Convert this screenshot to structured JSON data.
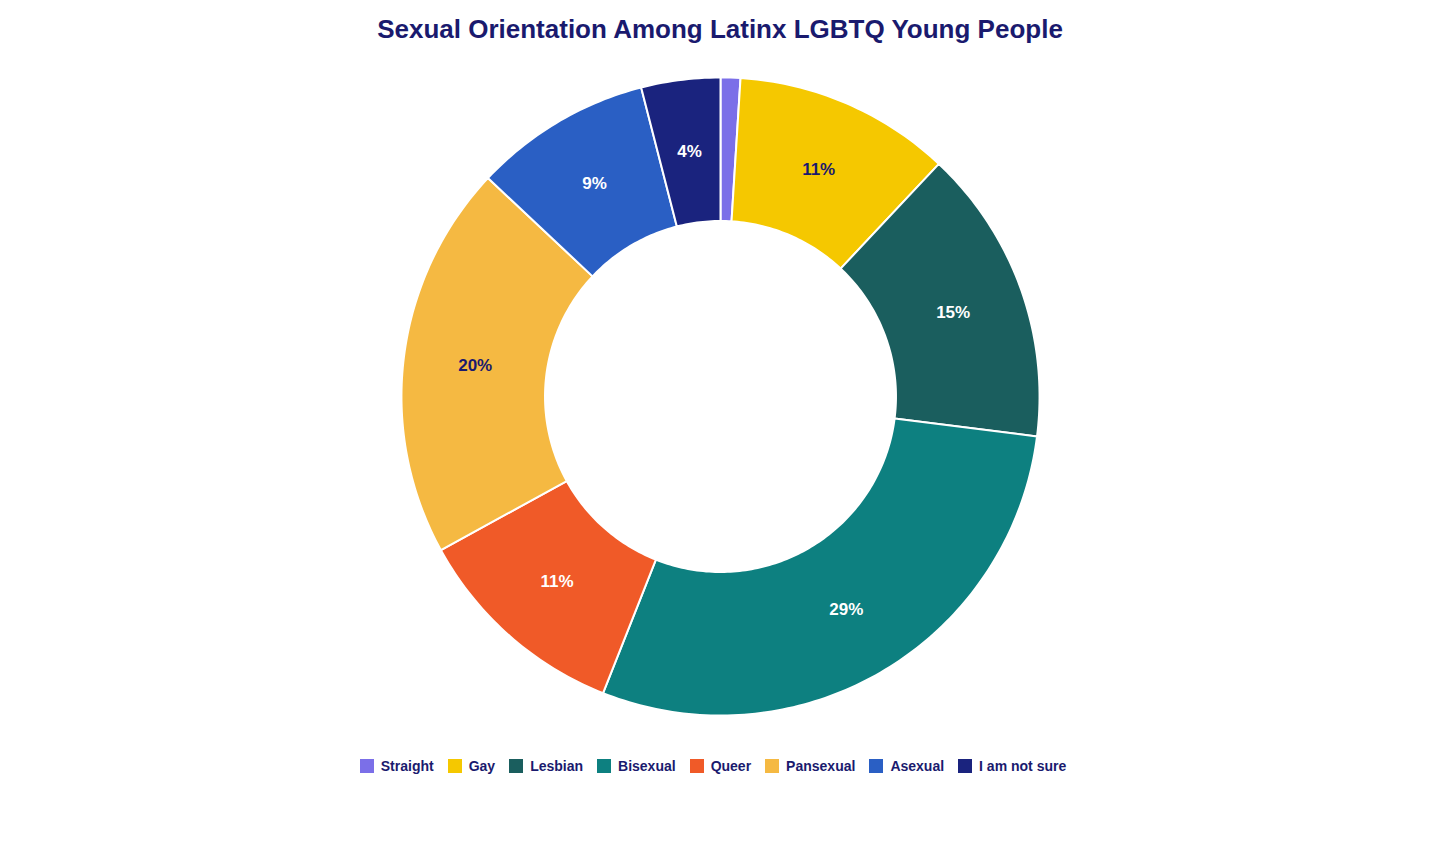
{
  "chart_data": {
    "type": "pie",
    "title": "Sexual Orientation Among Latinx LGBTQ Young People",
    "categories": [
      "Straight",
      "Gay",
      "Lesbian",
      "Bisexual",
      "Queer",
      "Pansexual",
      "Asexual",
      "I am not sure"
    ],
    "values": [
      1,
      11,
      15,
      29,
      11,
      20,
      9,
      4
    ],
    "value_labels": [
      null,
      "11%",
      "15%",
      "29%",
      "11%",
      "20%",
      "9%",
      "4%"
    ],
    "colors": [
      "#7b6fe8",
      "#f5c800",
      "#1a5e5e",
      "#0d8080",
      "#f05a28",
      "#f5b942",
      "#2a5fc4",
      "#1a237e"
    ],
    "data_labels": true,
    "legend": "bottom"
  }
}
